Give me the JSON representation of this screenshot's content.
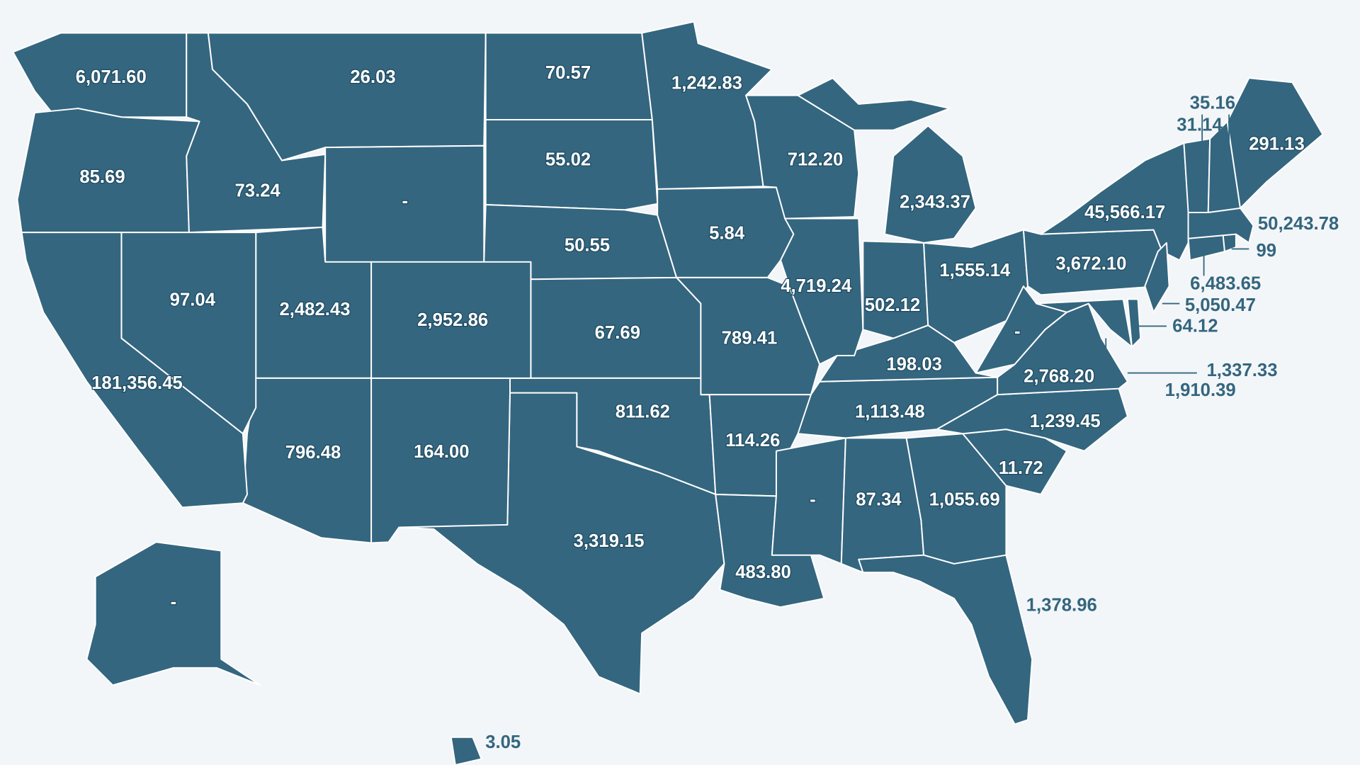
{
  "map": {
    "labels": [
      "6,071.60",
      "26.03",
      "70.57",
      "1,242.83",
      "85.69",
      "73.24",
      "-",
      "55.02",
      "712.20",
      "35.16",
      "31.14",
      "291.13",
      "2,343.37",
      "45,566.17",
      "50,243.78",
      "50.55",
      "5.84",
      "99",
      "97.04",
      "2,482.43",
      "2,952.86",
      "4,719.24",
      "502.12",
      "1,555.14",
      "3,672.10",
      "6,483.65",
      "5,050.47",
      "64.12",
      "67.69",
      "789.41",
      "-",
      "198.03",
      "2,768.20",
      "1,337.33",
      "1,910.39",
      "181,356.45",
      "811.62",
      "1,113.48",
      "1,239.45",
      "796.48",
      "164.00",
      "114.26",
      "11.72",
      "-",
      "87.34",
      "1,055.69",
      "3,319.15",
      "483.80",
      "1,378.96",
      "-",
      "3.05"
    ]
  }
}
